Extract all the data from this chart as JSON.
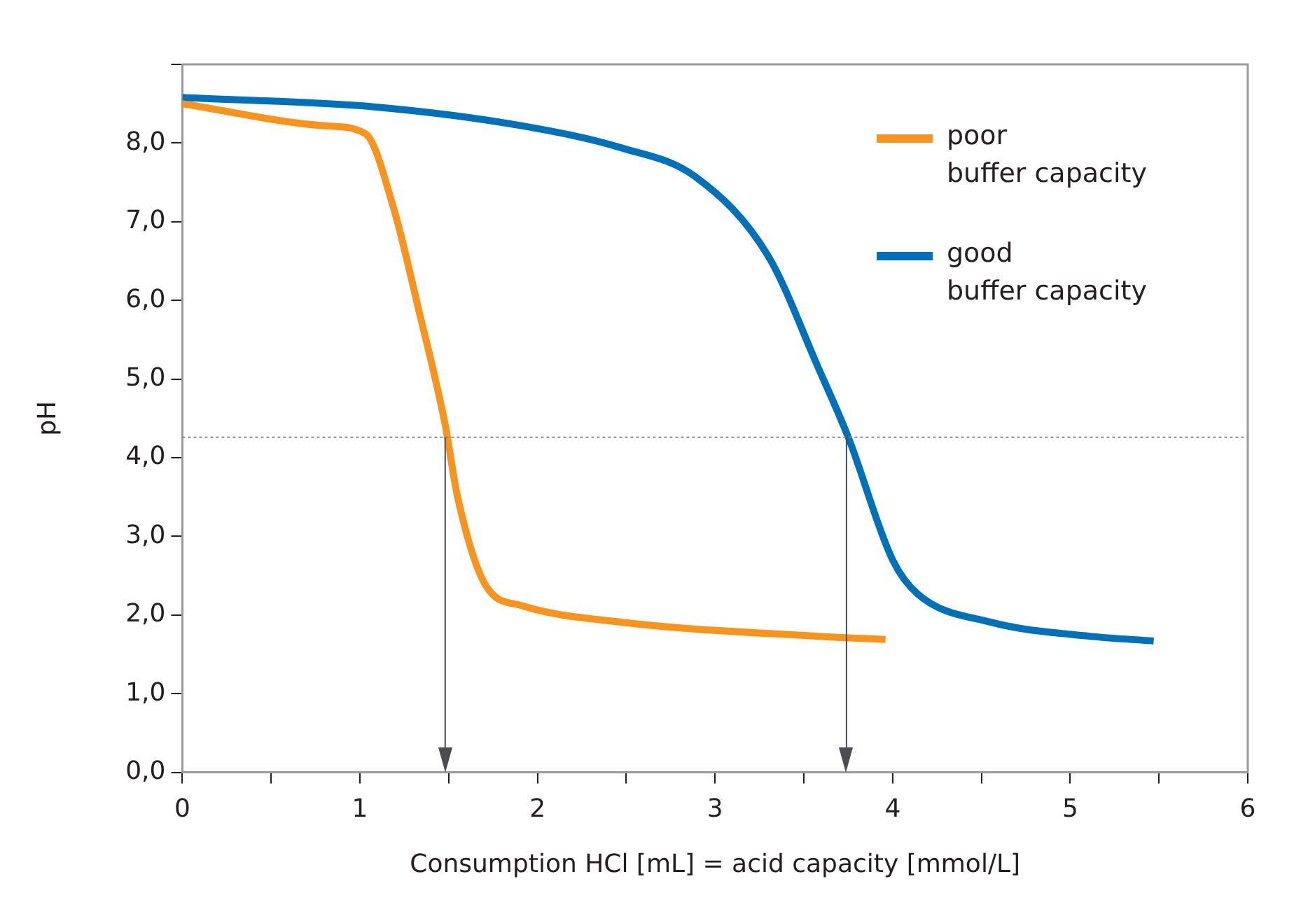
{
  "chart_data": {
    "type": "line",
    "xlabel": "Consumption HCl [mL] = acid capacity [mmol/L]",
    "ylabel": "pH",
    "xlim": [
      0,
      6
    ],
    "xticks": [
      0,
      {
        "value": 0.5,
        "label": null
      },
      1,
      {
        "value": 1.5,
        "label": null
      },
      2,
      {
        "value": 2.5,
        "label": null
      },
      3,
      {
        "value": 3.5,
        "label": null
      },
      4,
      {
        "value": 4.5,
        "label": null
      },
      5,
      {
        "value": 5.5,
        "label": null
      },
      6
    ],
    "ylim": [
      0,
      9
    ],
    "yticks": [
      {
        "value": 0,
        "label": "0,0"
      },
      {
        "value": 1,
        "label": "1,0"
      },
      {
        "value": 2,
        "label": "2,0"
      },
      {
        "value": 3,
        "label": "3,0"
      },
      {
        "value": 4,
        "label": "4,0"
      },
      {
        "value": 5,
        "label": "5,0"
      },
      {
        "value": 6,
        "label": "6,0"
      },
      {
        "value": 7,
        "label": "7,0"
      },
      {
        "value": 8,
        "label": "8,0"
      },
      {
        "value": 9,
        "label": null
      }
    ],
    "series": [
      {
        "name": "poor\nbuffer capacity",
        "color": "#f7941d",
        "x": [
          0,
          0.8,
          1.03,
          1.19,
          1.33,
          1.48,
          1.55,
          1.71,
          1.91,
          2.47,
          3.58,
          3.96
        ],
        "values": [
          8.5,
          8.22,
          8.12,
          7.17,
          5.89,
          4.42,
          3.5,
          2.37,
          2.12,
          1.91,
          1.73,
          1.69
        ]
      },
      {
        "name": "good\nbuffer capacity",
        "color": "#0070b8",
        "x": [
          0,
          1.08,
          1.91,
          2.47,
          2.89,
          3.3,
          3.58,
          3.75,
          4.0,
          4.14,
          4.55,
          5.11,
          5.47
        ],
        "values": [
          8.58,
          8.46,
          8.22,
          7.94,
          7.57,
          6.56,
          5.15,
          4.26,
          2.7,
          2.27,
          1.91,
          1.73,
          1.67
        ]
      }
    ],
    "ref_lines": [
      {
        "axis": "y",
        "value": 4.26,
        "color": "#888888",
        "line_style": "dotted"
      },
      {
        "axis": "x",
        "value": 1.48,
        "color": "#4d4d4f",
        "line_style": "solid"
      },
      {
        "axis": "x",
        "value": 3.74,
        "color": "#4d4d4f",
        "line_style": "solid"
      }
    ],
    "grid": false,
    "legend": "top right",
    "marker": "none",
    "line_style": "solid"
  }
}
